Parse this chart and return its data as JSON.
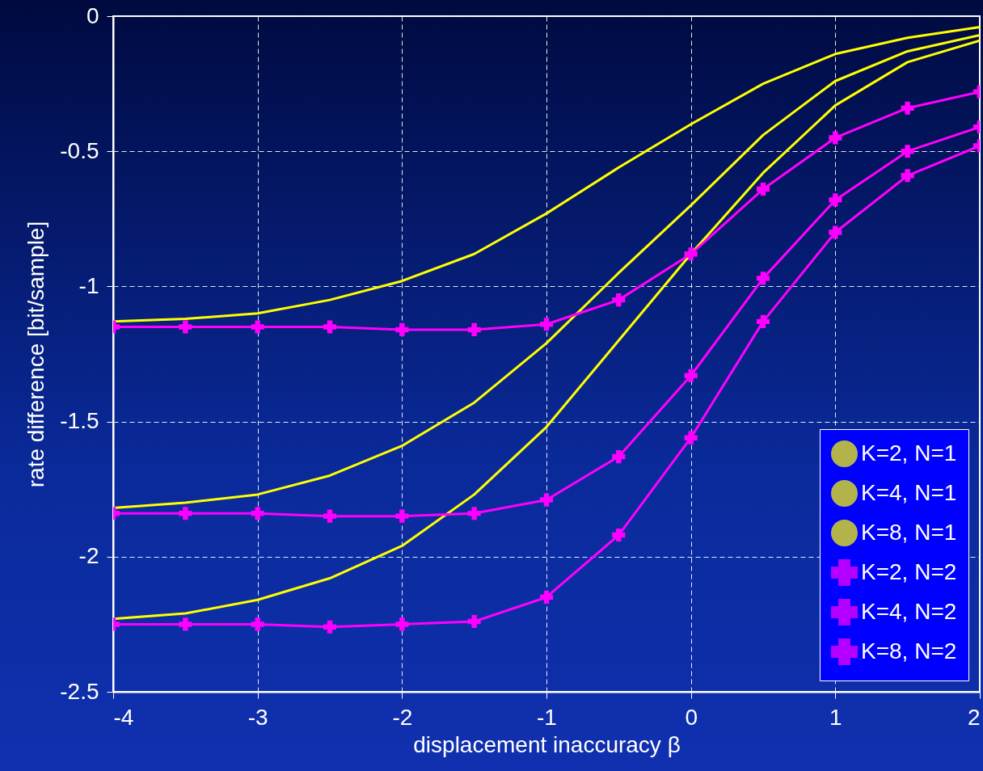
{
  "chart_data": {
    "type": "line",
    "xlabel": "displacement inaccuracy β",
    "ylabel": "rate difference [bit/sample]",
    "x": [
      -4,
      -3.5,
      -3,
      -2.5,
      -2,
      -1.5,
      -1,
      -0.5,
      0,
      0.5,
      1,
      1.5,
      2
    ],
    "series": [
      {
        "name": "K=2, N=1",
        "color": "#ffff00",
        "marker": "none",
        "values": [
          -1.13,
          -1.12,
          -1.1,
          -1.05,
          -0.98,
          -0.88,
          -0.73,
          -0.56,
          -0.4,
          -0.25,
          -0.14,
          -0.08,
          -0.04
        ]
      },
      {
        "name": "K=4, N=1",
        "color": "#ffff00",
        "marker": "none",
        "values": [
          -1.82,
          -1.8,
          -1.77,
          -1.7,
          -1.59,
          -1.43,
          -1.21,
          -0.95,
          -0.7,
          -0.44,
          -0.24,
          -0.13,
          -0.07
        ]
      },
      {
        "name": "K=8, N=1",
        "color": "#ffff00",
        "marker": "none",
        "values": [
          -2.23,
          -2.21,
          -2.16,
          -2.08,
          -1.96,
          -1.77,
          -1.52,
          -1.2,
          -0.88,
          -0.58,
          -0.33,
          -0.17,
          -0.09
        ]
      },
      {
        "name": "K=2, N=2",
        "color": "#ff00ff",
        "marker": "cross",
        "values": [
          -1.15,
          -1.15,
          -1.15,
          -1.15,
          -1.16,
          -1.16,
          -1.14,
          -1.05,
          -0.88,
          -0.64,
          -0.45,
          -0.34,
          -0.28
        ]
      },
      {
        "name": "K=4, N=2",
        "color": "#ff00ff",
        "marker": "cross",
        "values": [
          -1.84,
          -1.84,
          -1.84,
          -1.85,
          -1.85,
          -1.84,
          -1.79,
          -1.63,
          -1.33,
          -0.97,
          -0.68,
          -0.5,
          -0.41
        ]
      },
      {
        "name": "K=8, N=2",
        "color": "#ff00ff",
        "marker": "cross",
        "values": [
          -2.25,
          -2.25,
          -2.25,
          -2.26,
          -2.25,
          -2.24,
          -2.15,
          -1.92,
          -1.56,
          -1.13,
          -0.8,
          -0.59,
          -0.48
        ]
      }
    ],
    "xlim": [
      -4,
      2
    ],
    "xticks": [
      -4,
      -3,
      -2,
      -1,
      0,
      1,
      2
    ],
    "ylim": [
      -2.5,
      0
    ],
    "yticks": [
      -2.5,
      -2,
      -1.5,
      -1,
      -0.5,
      0
    ],
    "grid": true,
    "legend": "bottom right",
    "line_style": "solid"
  }
}
